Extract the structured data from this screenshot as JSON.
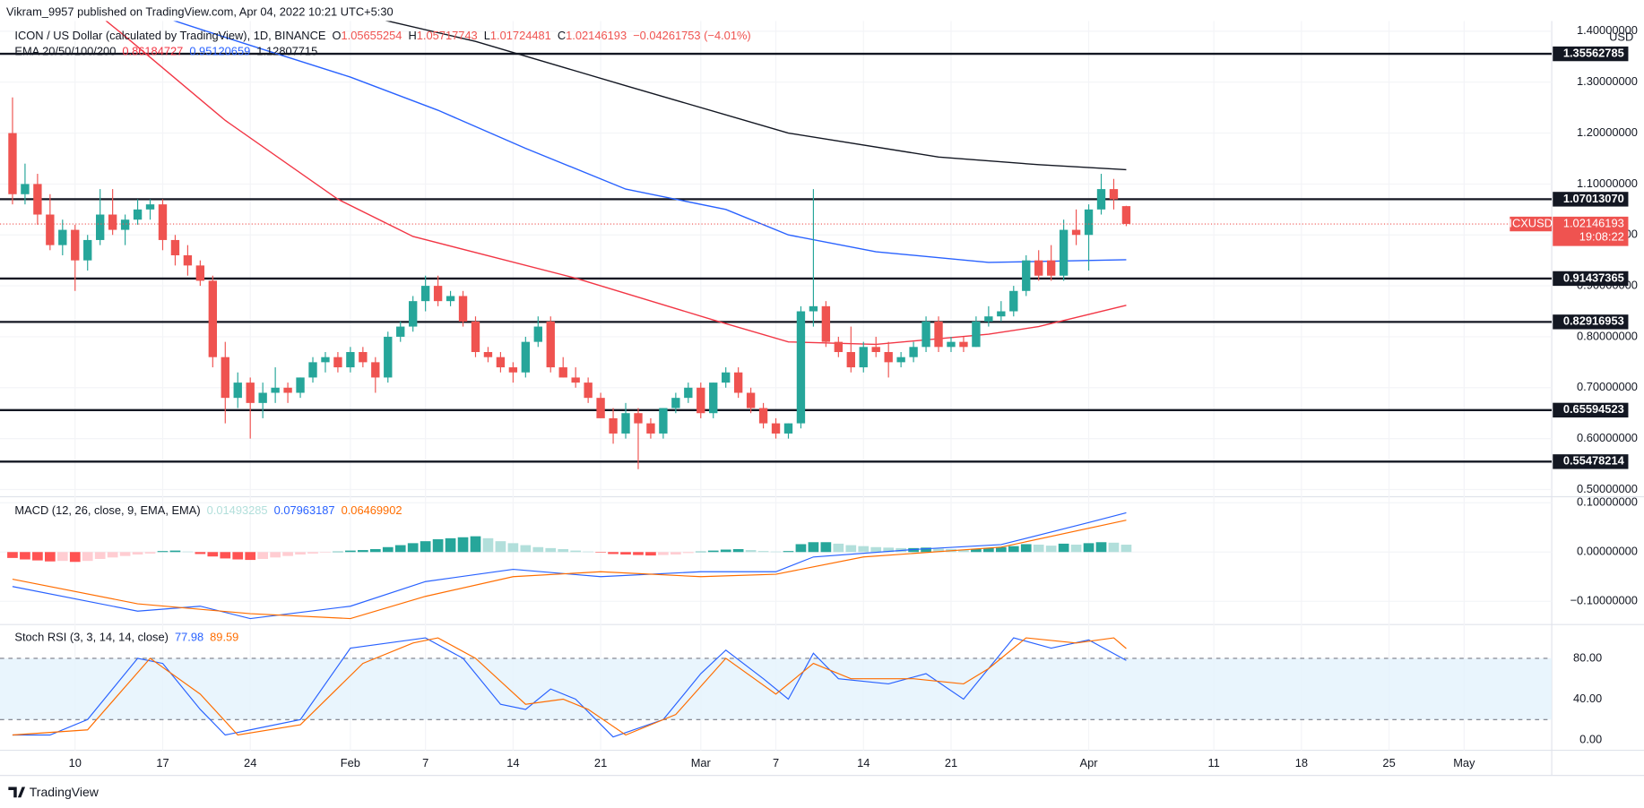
{
  "chart_data": {
    "type": "candlestick",
    "header": "Vikram_9957 published on TradingView.com, Apr 04, 2022 10:21 UTC+5:30",
    "title": "ICON / US Dollar (calculated by TradingView), 1D, BINANCE",
    "ohlc_labels": [
      "O",
      "H",
      "L",
      "C"
    ],
    "change": "−0.04261753 (−4.01%)",
    "currency": "USD",
    "symbol": "ICXUSD",
    "countdown": "19:08:22",
    "brand": "TradingView",
    "up_color": "#26a69a",
    "down_color": "#ef5350",
    "x": [
      "Jan 5",
      "Jan 6",
      "Jan 7",
      "Jan 8",
      "Jan 9",
      "Jan 10",
      "Jan 11",
      "Jan 12",
      "Jan 13",
      "Jan 14",
      "Jan 15",
      "Jan 16",
      "Jan 17",
      "Jan 18",
      "Jan 19",
      "Jan 20",
      "Jan 21",
      "Jan 22",
      "Jan 23",
      "Jan 24",
      "Jan 25",
      "Jan 26",
      "Jan 27",
      "Jan 28",
      "Jan 29",
      "Jan 30",
      "Jan 31",
      "Feb 1",
      "Feb 2",
      "Feb 3",
      "Feb 4",
      "Feb 5",
      "Feb 6",
      "Feb 7",
      "Feb 8",
      "Feb 9",
      "Feb 10",
      "Feb 11",
      "Feb 12",
      "Feb 13",
      "Feb 14",
      "Feb 15",
      "Feb 16",
      "Feb 17",
      "Feb 18",
      "Feb 19",
      "Feb 20",
      "Feb 21",
      "Feb 22",
      "Feb 23",
      "Feb 24",
      "Feb 25",
      "Feb 26",
      "Feb 27",
      "Feb 28",
      "Mar 1",
      "Mar 2",
      "Mar 3",
      "Mar 4",
      "Mar 5",
      "Mar 6",
      "Mar 7",
      "Mar 8",
      "Mar 9",
      "Mar 10",
      "Mar 11",
      "Mar 12",
      "Mar 13",
      "Mar 14",
      "Mar 15",
      "Mar 16",
      "Mar 17",
      "Mar 18",
      "Mar 19",
      "Mar 20",
      "Mar 21",
      "Mar 22",
      "Mar 23",
      "Mar 24",
      "Mar 25",
      "Mar 26",
      "Mar 27",
      "Mar 28",
      "Mar 29",
      "Mar 30",
      "Mar 31",
      "Apr 1",
      "Apr 2",
      "Apr 3",
      "Apr 4"
    ],
    "open": [
      1.2,
      1.08,
      1.1,
      1.04,
      0.98,
      1.01,
      0.95,
      0.99,
      1.04,
      1.01,
      1.03,
      1.05,
      1.06,
      0.99,
      0.96,
      0.94,
      0.91,
      0.76,
      0.68,
      0.71,
      0.67,
      0.69,
      0.7,
      0.69,
      0.72,
      0.75,
      0.76,
      0.74,
      0.77,
      0.75,
      0.72,
      0.8,
      0.82,
      0.87,
      0.9,
      0.87,
      0.88,
      0.83,
      0.77,
      0.76,
      0.74,
      0.73,
      0.79,
      0.83,
      0.74,
      0.72,
      0.71,
      0.68,
      0.64,
      0.61,
      0.65,
      0.63,
      0.61,
      0.66,
      0.68,
      0.7,
      0.65,
      0.71,
      0.73,
      0.69,
      0.66,
      0.63,
      0.61,
      0.63,
      0.85,
      0.86,
      0.79,
      0.77,
      0.74,
      0.78,
      0.77,
      0.75,
      0.76,
      0.78,
      0.83,
      0.78,
      0.79,
      0.78,
      0.83,
      0.84,
      0.85,
      0.89,
      0.95,
      0.95,
      0.92,
      1.01,
      1.0,
      1.05,
      1.09,
      1.05655254
    ],
    "high": [
      1.27,
      1.14,
      1.12,
      1.08,
      1.03,
      1.02,
      1.0,
      1.09,
      1.09,
      1.04,
      1.07,
      1.07,
      1.07,
      1.0,
      0.98,
      0.95,
      0.92,
      0.79,
      0.73,
      0.72,
      0.71,
      0.74,
      0.71,
      0.72,
      0.76,
      0.77,
      0.77,
      0.78,
      0.78,
      0.76,
      0.81,
      0.83,
      0.88,
      0.92,
      0.92,
      0.89,
      0.89,
      0.84,
      0.78,
      0.77,
      0.75,
      0.8,
      0.84,
      0.84,
      0.76,
      0.74,
      0.72,
      0.69,
      0.66,
      0.67,
      0.66,
      0.64,
      0.66,
      0.69,
      0.71,
      0.71,
      0.71,
      0.74,
      0.74,
      0.7,
      0.67,
      0.64,
      0.63,
      0.86,
      1.09,
      0.87,
      0.8,
      0.82,
      0.79,
      0.8,
      0.79,
      0.77,
      0.79,
      0.84,
      0.84,
      0.8,
      0.8,
      0.84,
      0.86,
      0.87,
      0.9,
      0.96,
      0.97,
      0.98,
      1.03,
      1.05,
      1.06,
      1.12,
      1.11,
      1.05717743
    ],
    "low": [
      1.06,
      1.06,
      1.02,
      0.97,
      0.96,
      0.89,
      0.93,
      0.98,
      1.0,
      0.98,
      1.02,
      1.03,
      0.97,
      0.94,
      0.92,
      0.9,
      0.74,
      0.63,
      0.66,
      0.6,
      0.64,
      0.67,
      0.67,
      0.68,
      0.71,
      0.73,
      0.73,
      0.73,
      0.74,
      0.69,
      0.71,
      0.79,
      0.81,
      0.85,
      0.86,
      0.86,
      0.82,
      0.76,
      0.75,
      0.73,
      0.71,
      0.72,
      0.78,
      0.73,
      0.72,
      0.7,
      0.67,
      0.64,
      0.59,
      0.6,
      0.54,
      0.6,
      0.6,
      0.65,
      0.67,
      0.64,
      0.64,
      0.7,
      0.68,
      0.65,
      0.62,
      0.6,
      0.6,
      0.62,
      0.82,
      0.78,
      0.76,
      0.73,
      0.73,
      0.76,
      0.72,
      0.74,
      0.75,
      0.77,
      0.77,
      0.77,
      0.77,
      0.78,
      0.82,
      0.83,
      0.84,
      0.88,
      0.91,
      0.91,
      0.91,
      0.98,
      0.93,
      1.04,
      1.05,
      1.01724481
    ],
    "close": [
      1.08,
      1.1,
      1.04,
      0.98,
      1.01,
      0.95,
      0.99,
      1.04,
      1.01,
      1.03,
      1.05,
      1.06,
      0.99,
      0.96,
      0.94,
      0.91,
      0.76,
      0.68,
      0.71,
      0.67,
      0.69,
      0.7,
      0.69,
      0.72,
      0.75,
      0.76,
      0.74,
      0.77,
      0.75,
      0.72,
      0.8,
      0.82,
      0.87,
      0.9,
      0.87,
      0.88,
      0.83,
      0.77,
      0.76,
      0.74,
      0.73,
      0.79,
      0.82,
      0.74,
      0.72,
      0.71,
      0.68,
      0.64,
      0.61,
      0.65,
      0.63,
      0.61,
      0.66,
      0.68,
      0.7,
      0.65,
      0.71,
      0.73,
      0.69,
      0.66,
      0.63,
      0.61,
      0.63,
      0.85,
      0.86,
      0.79,
      0.77,
      0.74,
      0.78,
      0.77,
      0.75,
      0.76,
      0.78,
      0.83,
      0.78,
      0.79,
      0.78,
      0.83,
      0.84,
      0.85,
      0.89,
      0.95,
      0.92,
      0.92,
      1.01,
      1.0,
      1.05,
      1.09,
      1.07,
      1.02146193
    ],
    "xlim": [
      "Jan 4",
      "May 8"
    ],
    "xticks": [
      {
        "value": "Jan 10",
        "label": "10"
      },
      {
        "value": "Jan 17",
        "label": "17"
      },
      {
        "value": "Jan 24",
        "label": "24"
      },
      {
        "value": "Feb 1",
        "label": "Feb"
      },
      {
        "value": "Feb 7",
        "label": "7"
      },
      {
        "value": "Feb 14",
        "label": "14"
      },
      {
        "value": "Feb 21",
        "label": "21"
      },
      {
        "value": "Mar 1",
        "label": "Mar"
      },
      {
        "value": "Mar 7",
        "label": "7"
      },
      {
        "value": "Mar 14",
        "label": "14"
      },
      {
        "value": "Mar 21",
        "label": "21"
      },
      {
        "value": "Apr 1",
        "label": "Apr"
      },
      {
        "value": "Apr 11",
        "label": "11"
      },
      {
        "value": "Apr 18",
        "label": "18"
      },
      {
        "value": "Apr 25",
        "label": "25"
      },
      {
        "value": "May 1",
        "label": "May"
      }
    ],
    "ylim": [
      0.49,
      1.42
    ],
    "yticks": [
      {
        "value": 0.5,
        "label": "0.50000000"
      },
      {
        "value": 0.6,
        "label": "0.60000000"
      },
      {
        "value": 0.7,
        "label": "0.70000000"
      },
      {
        "value": 0.8,
        "label": "0.80000000"
      },
      {
        "value": 0.9,
        "label": "0.90000000"
      },
      {
        "value": 1.0,
        "label": "1.00000000"
      },
      {
        "value": 1.1,
        "label": "1.10000000"
      },
      {
        "value": 1.2,
        "label": "1.20000000"
      },
      {
        "value": 1.3,
        "label": "1.30000000"
      },
      {
        "value": 1.4,
        "label": "1.40000000"
      }
    ],
    "levels": [
      1.35562785,
      {
        "value": 1.0701307,
        "label": "1.07013070"
      },
      0.91437365,
      0.82916953,
      0.65594523,
      0.55478214
    ],
    "ema": {
      "label": "EMA 20/50/100/200",
      "series": [
        {
          "color": "#f23645",
          "x": [
            "Jan 11",
            "Jan 14",
            "Jan 22",
            "Jan 31",
            "Feb 6",
            "Feb 19",
            "Mar 2",
            "Mar 8",
            "Mar 15",
            "Mar 24",
            "Mar 28",
            "Apr 4"
          ],
          "values": [
            1.45,
            1.39,
            1.225,
            1.07,
            0.997,
            0.915,
            0.833,
            0.79,
            0.785,
            0.805,
            0.82,
            0.86184727
          ]
        },
        {
          "color": "#2962ff",
          "x": [
            "Jan 13",
            "Jan 23",
            "Feb 1",
            "Feb 8",
            "Feb 15",
            "Feb 23",
            "Mar 3",
            "Mar 8",
            "Mar 15",
            "Mar 24",
            "Apr 4"
          ],
          "values": [
            1.46,
            1.38,
            1.31,
            1.245,
            1.17,
            1.09,
            1.05,
            1.0,
            0.967,
            0.946,
            0.95120659
          ]
        },
        {
          "color": "#131722",
          "x": [
            "Jan 28",
            "Feb 11",
            "Feb 23",
            "Mar 8",
            "Mar 20",
            "Mar 28",
            "Apr 4"
          ],
          "values": [
            1.46,
            1.38,
            1.293,
            1.2,
            1.153,
            1.138,
            1.12807715
          ]
        }
      ]
    },
    "macd": {
      "label": "MACD (12, 26, close, 9, EMA, EMA)",
      "ylim": [
        -0.145,
        0.108
      ],
      "yticks": [
        {
          "value": 0.1,
          "label": "0.10000000"
        },
        {
          "value": 0,
          "label": "0.00000000"
        },
        {
          "value": -0.1,
          "label": "−0.10000000"
        }
      ],
      "hist_colors": [
        "#26a69a",
        "#b2dfdb",
        "#ff5252",
        "#ffcdd2"
      ],
      "histogram": [
        -0.012,
        -0.015,
        -0.017,
        -0.019,
        -0.018,
        -0.02,
        -0.018,
        -0.014,
        -0.011,
        -0.008,
        -0.005,
        -0.003,
        0.002,
        0.003,
        0.001,
        -0.004,
        -0.009,
        -0.013,
        -0.015,
        -0.016,
        -0.014,
        -0.011,
        -0.008,
        -0.005,
        -0.003,
        -0.001,
        0.001,
        0.003,
        0.004,
        0.006,
        0.01,
        0.014,
        0.018,
        0.022,
        0.026,
        0.028,
        0.03,
        0.032,
        0.028,
        0.022,
        0.018,
        0.014,
        0.01,
        0.008,
        0.006,
        0.003,
        0.001,
        -0.001,
        -0.004,
        -0.005,
        -0.006,
        -0.007,
        -0.006,
        -0.005,
        -0.002,
        0.001,
        0.003,
        0.005,
        0.006,
        0.004,
        0.002,
        0.001,
        0.002,
        0.016,
        0.02,
        0.02,
        0.017,
        0.014,
        0.012,
        0.01,
        0.009,
        0.008,
        0.008,
        0.009,
        0.007,
        0.006,
        0.005,
        0.006,
        0.008,
        0.01,
        0.012,
        0.016,
        0.015,
        0.013,
        0.017,
        0.015,
        0.018,
        0.02,
        0.019,
        0.01493285
      ],
      "series": [
        {
          "color": "#2962ff",
          "x": [
            "Jan 5",
            "Jan 15",
            "Jan 20",
            "Jan 24",
            "Feb 1",
            "Feb 7",
            "Feb 14",
            "Feb 21",
            "Mar 1",
            "Mar 7",
            "Mar 10",
            "Mar 18",
            "Mar 25",
            "Apr 1",
            "Apr 4"
          ],
          "values": [
            -0.07,
            -0.12,
            -0.11,
            -0.135,
            -0.11,
            -0.06,
            -0.035,
            -0.05,
            -0.04,
            -0.04,
            -0.01,
            0.005,
            0.015,
            0.06,
            0.07963187
          ]
        },
        {
          "color": "#ff6d00",
          "x": [
            "Jan 5",
            "Jan 15",
            "Jan 24",
            "Feb 1",
            "Feb 7",
            "Feb 14",
            "Feb 21",
            "Mar 1",
            "Mar 7",
            "Mar 14",
            "Mar 25",
            "Apr 4"
          ],
          "values": [
            -0.055,
            -0.105,
            -0.125,
            -0.135,
            -0.09,
            -0.05,
            -0.04,
            -0.05,
            -0.045,
            -0.01,
            0.01,
            0.06469902
          ]
        }
      ]
    },
    "stoch": {
      "label": "Stoch RSI (3, 3, 14, 14, close)",
      "ylim": [
        -10,
        111
      ],
      "yticks": [
        {
          "value": 80,
          "label": "80.00"
        },
        {
          "value": 40,
          "label": "40.00"
        },
        {
          "value": 0,
          "label": "0.00"
        }
      ],
      "band": [
        20,
        80
      ],
      "band_color": "#e3f2fd",
      "series": [
        {
          "color": "#2962ff",
          "x": [
            "Jan 5",
            "Jan 8",
            "Jan 11",
            "Jan 15",
            "Jan 17",
            "Jan 20",
            "Jan 22",
            "Jan 24",
            "Jan 28",
            "Feb 1",
            "Feb 4",
            "Feb 7",
            "Feb 10",
            "Feb 13",
            "Feb 15",
            "Feb 17",
            "Feb 19",
            "Feb 22",
            "Feb 26",
            "Mar 1",
            "Mar 3",
            "Mar 6",
            "Mar 8",
            "Mar 10",
            "Mar 12",
            "Mar 16",
            "Mar 19",
            "Mar 22",
            "Mar 26",
            "Mar 29",
            "Apr 1",
            "Apr 4"
          ],
          "values": [
            5,
            5,
            20,
            80,
            75,
            30,
            5,
            10,
            20,
            90,
            95,
            100,
            80,
            35,
            30,
            50,
            40,
            3,
            20,
            65,
            88,
            60,
            40,
            85,
            60,
            55,
            65,
            40,
            100,
            90,
            98,
            77.98
          ]
        },
        {
          "color": "#ff6d00",
          "x": [
            "Jan 5",
            "Jan 11",
            "Jan 16",
            "Jan 20",
            "Jan 23",
            "Jan 28",
            "Feb 2",
            "Feb 6",
            "Feb 8",
            "Feb 11",
            "Feb 15",
            "Feb 18",
            "Feb 20",
            "Feb 23",
            "Feb 27",
            "Mar 3",
            "Mar 7",
            "Mar 10",
            "Mar 13",
            "Mar 18",
            "Mar 22",
            "Mar 24",
            "Mar 27",
            "Mar 31",
            "Apr 3",
            "Apr 4"
          ],
          "values": [
            5,
            10,
            80,
            45,
            5,
            15,
            75,
            95,
            100,
            80,
            35,
            40,
            30,
            5,
            25,
            80,
            45,
            75,
            60,
            60,
            55,
            70,
            100,
            95,
            100,
            89.59
          ]
        }
      ]
    }
  }
}
